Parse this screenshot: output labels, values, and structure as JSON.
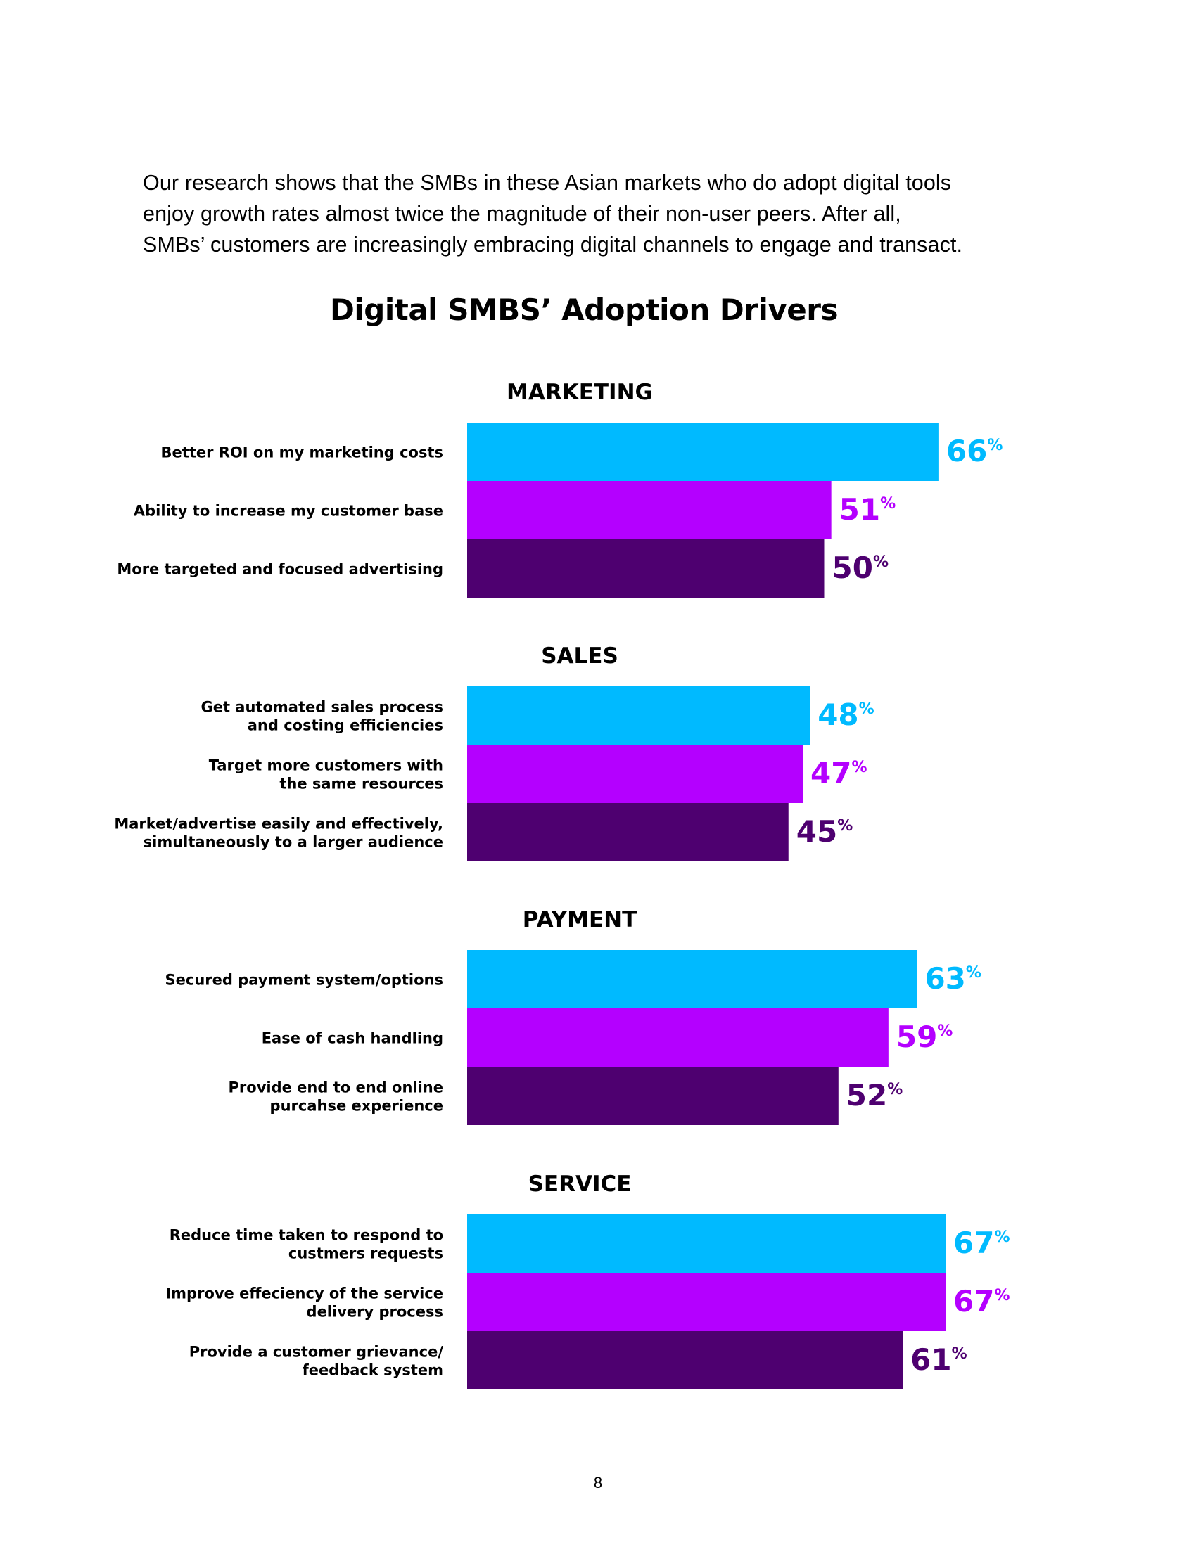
{
  "intro": {
    "lines": [
      "Our research shows that the SMBs in these Asian markets who do adopt digital tools",
      "enjoy growth rates almost twice the magnitude of their non-user peers. After all,",
      "SMBs’ customers are increasingly embracing digital channels to engage and transact."
    ]
  },
  "page_number": "8",
  "colors": {
    "series1": "#00BAFF",
    "series2": "#B400FF",
    "series3": "#4E0070"
  },
  "chart_data": {
    "type": "bar",
    "orientation": "horizontal",
    "title": "Digital SMBS’ Adoption Drivers",
    "unit": "%",
    "xlim": [
      0,
      100
    ],
    "grid": false,
    "groups": [
      {
        "name": "MARKETING",
        "bars": [
          {
            "label": [
              "Better ROI on my marketing costs"
            ],
            "value": 66
          },
          {
            "label": [
              "Ability to increase my customer base"
            ],
            "value": 51
          },
          {
            "label": [
              "More targeted and focused advertising"
            ],
            "value": 50
          }
        ]
      },
      {
        "name": "SALES",
        "bars": [
          {
            "label": [
              "Get automated sales process",
              "and costing efficiencies"
            ],
            "value": 48
          },
          {
            "label": [
              "Target more customers with",
              "the same resources"
            ],
            "value": 47
          },
          {
            "label": [
              "Market/advertise easily and effectively,",
              "simultaneously to a larger audience"
            ],
            "value": 45
          }
        ]
      },
      {
        "name": "PAYMENT",
        "bars": [
          {
            "label": [
              "Secured payment system/options"
            ],
            "value": 63
          },
          {
            "label": [
              "Ease of cash handling"
            ],
            "value": 59
          },
          {
            "label": [
              "Provide end to end online",
              "purcahse experience"
            ],
            "value": 52
          }
        ]
      },
      {
        "name": "SERVICE",
        "bars": [
          {
            "label": [
              "Reduce time taken to respond to",
              "custmers requests"
            ],
            "value": 67
          },
          {
            "label": [
              "Improve effeciency of the service",
              "delivery process"
            ],
            "value": 67
          },
          {
            "label": [
              "Provide a customer grievance/",
              "feedback system"
            ],
            "value": 61
          }
        ]
      }
    ]
  }
}
